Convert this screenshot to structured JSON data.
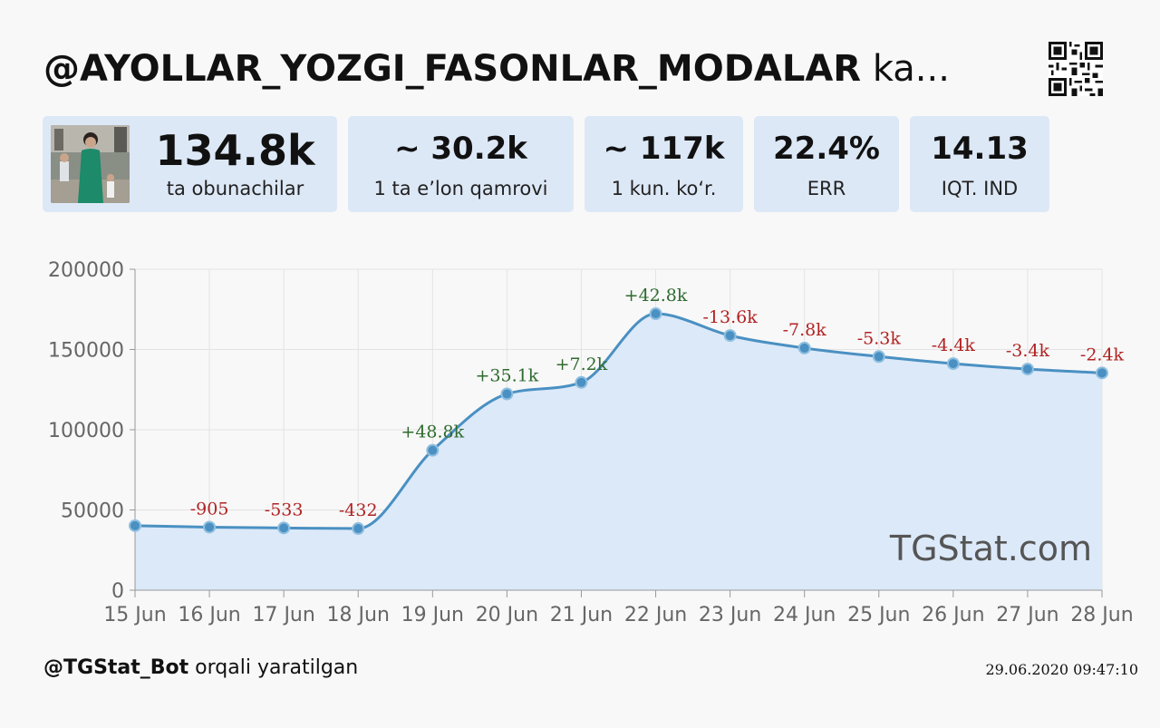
{
  "header": {
    "channel": "@AYOLLAR_YOZGI_FASONLAR_MODALAR",
    "suffix": " ka..."
  },
  "stats": [
    {
      "value": "134.8k",
      "label": "ta obunachilar"
    },
    {
      "value": "~ 30.2k",
      "label": "1 ta e’lon qamrovi"
    },
    {
      "value": "~ 117k",
      "label": "1 kun. ko‘r."
    },
    {
      "value": "22.4%",
      "label": "ERR"
    },
    {
      "value": "14.13",
      "label": "IQT. IND"
    }
  ],
  "chart_data": {
    "type": "area",
    "x": [
      "15 Jun",
      "16 Jun",
      "17 Jun",
      "18 Jun",
      "19 Jun",
      "20 Jun",
      "21 Jun",
      "22 Jun",
      "23 Jun",
      "24 Jun",
      "25 Jun",
      "26 Jun",
      "27 Jun",
      "28 Jun"
    ],
    "values": [
      40200,
      39300,
      38800,
      38400,
      87200,
      122300,
      129500,
      172300,
      158700,
      150900,
      145600,
      141200,
      137800,
      135400
    ],
    "deltas": [
      "",
      "-905",
      "-533",
      "-432",
      "+48.8k",
      "+35.1k",
      "+7.2k",
      "+42.8k",
      "-13.6k",
      "-7.8k",
      "-5.3k",
      "-4.4k",
      "-3.4k",
      "-2.4k"
    ],
    "yticks": [
      "0",
      "50000",
      "100000",
      "150000",
      "200000"
    ],
    "ylim": [
      0,
      200000
    ],
    "grid": true,
    "watermark": "TGStat.com",
    "colors": {
      "line": "#4a90c2",
      "fill": "#dce9f9",
      "positive": "#2e6b2e",
      "negative": "#b22222"
    }
  },
  "footer": {
    "bot": "@TGStat_Bot",
    "text": " orqali yaratilgan",
    "timestamp": "29.06.2020 09:47:10"
  }
}
